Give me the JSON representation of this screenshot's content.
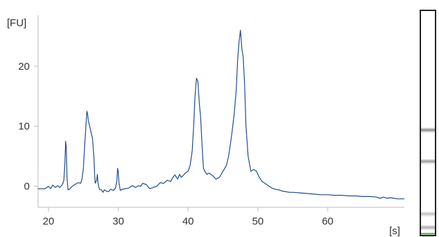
{
  "chart_data": {
    "type": "line",
    "title": "",
    "ylabel_unit": "[FU]",
    "xlabel_unit": "[s]",
    "xlim": [
      18.5,
      71
    ],
    "ylim": [
      -3.5,
      28.5
    ],
    "x_ticks": [
      20,
      30,
      40,
      50,
      60
    ],
    "y_ticks": [
      0,
      10,
      20
    ],
    "grid": false,
    "colors": {
      "trace": "#1f4d8a",
      "axis": "#bbbbbb",
      "text": "#333333",
      "gel_frame": "#222222"
    },
    "series": [
      {
        "x": [
          18.5,
          19.5,
          20.0,
          20.3,
          20.6,
          21.0,
          21.3,
          21.6,
          22.0,
          22.2,
          22.35,
          22.45,
          22.55,
          22.65,
          22.8,
          23.0,
          23.4,
          23.8,
          24.2,
          24.6,
          24.8,
          25.0,
          25.2,
          25.35,
          25.5,
          25.6,
          25.7,
          25.9,
          26.1,
          26.3,
          26.5,
          26.6,
          26.7,
          26.9,
          27.0,
          27.1,
          27.3,
          27.6,
          27.8,
          28.0,
          28.3,
          28.6,
          28.9,
          29.3,
          29.6,
          29.8,
          29.9,
          30.0,
          30.1,
          30.3,
          30.6,
          31.0,
          31.5,
          32.0,
          32.5,
          32.9,
          33.2,
          33.5,
          34.0,
          34.5,
          35.0,
          35.5,
          36.0,
          36.5,
          37.0,
          37.5,
          37.8,
          38.1,
          38.5,
          38.8,
          39.0,
          39.3,
          39.6,
          40.0,
          40.3,
          40.6,
          40.8,
          41.0,
          41.2,
          41.4,
          41.6,
          41.8,
          42.0,
          42.2,
          42.4,
          42.7,
          43.0,
          43.5,
          44.0,
          44.5,
          45.0,
          45.5,
          45.8,
          46.0,
          46.3,
          46.6,
          46.9,
          47.1,
          47.3,
          47.5,
          47.7,
          47.9,
          48.1,
          48.3,
          48.6,
          49.0,
          49.4,
          49.8,
          50.2,
          50.6,
          51.0,
          51.5,
          52.0,
          52.5,
          53.0,
          53.5,
          54.0,
          54.5,
          55.0,
          56.0,
          57.0,
          58.0,
          59.0,
          60.0,
          61.0,
          62.0,
          63.0,
          64.0,
          65.0,
          66.0,
          67.0,
          67.5,
          68.0,
          68.5,
          69.0,
          69.5,
          70.0,
          70.5,
          71.0
        ],
        "y": [
          -0.4,
          -0.4,
          0.0,
          -0.4,
          0.2,
          -0.2,
          0.1,
          -0.2,
          0.3,
          1.0,
          4.0,
          7.5,
          6.5,
          1.5,
          -0.6,
          -0.5,
          0.0,
          0.3,
          0.6,
          0.5,
          1.2,
          3.0,
          7.0,
          10.0,
          12.5,
          12.0,
          11.0,
          10.0,
          9.0,
          8.0,
          5.0,
          2.0,
          0.5,
          1.0,
          2.0,
          0.5,
          -0.5,
          -0.6,
          -1.0,
          -0.6,
          -0.8,
          -0.9,
          -0.5,
          -0.7,
          -0.3,
          1.0,
          3.0,
          2.5,
          0.5,
          -0.7,
          -0.5,
          -0.4,
          -0.3,
          0.1,
          -0.2,
          0.1,
          0.0,
          0.5,
          0.3,
          -0.4,
          -0.2,
          0.0,
          0.6,
          0.5,
          1.0,
          0.8,
          1.4,
          1.9,
          1.2,
          2.0,
          1.5,
          1.8,
          2.2,
          2.5,
          3.5,
          6.0,
          10.0,
          15.0,
          18.0,
          17.5,
          14.0,
          11.5,
          7.0,
          3.0,
          2.5,
          2.0,
          2.2,
          1.8,
          1.2,
          1.5,
          2.5,
          3.5,
          5.0,
          6.5,
          9.0,
          12.0,
          16.0,
          21.0,
          24.0,
          26.0,
          23.0,
          21.5,
          17.0,
          10.0,
          5.0,
          2.5,
          2.8,
          2.5,
          1.5,
          0.8,
          0.5,
          0.1,
          -0.3,
          -0.5,
          -0.6,
          -0.8,
          -0.9,
          -1.0,
          -1.0,
          -1.1,
          -1.2,
          -1.3,
          -1.4,
          -1.4,
          -1.5,
          -1.5,
          -1.6,
          -1.6,
          -1.7,
          -1.7,
          -1.8,
          -2.0,
          -1.8,
          -2.0,
          -1.9,
          -2.0,
          -2.1,
          -2.1,
          -2.1
        ]
      }
    ]
  },
  "gel_lane": {
    "bands": [
      {
        "position": 0.53,
        "intensity": 0.65
      },
      {
        "position": 0.67,
        "intensity": 0.55
      },
      {
        "position": 0.905,
        "intensity": 0.35
      },
      {
        "position": 0.965,
        "intensity": 0.45
      }
    ],
    "marker_color": "#5cbf4f"
  }
}
